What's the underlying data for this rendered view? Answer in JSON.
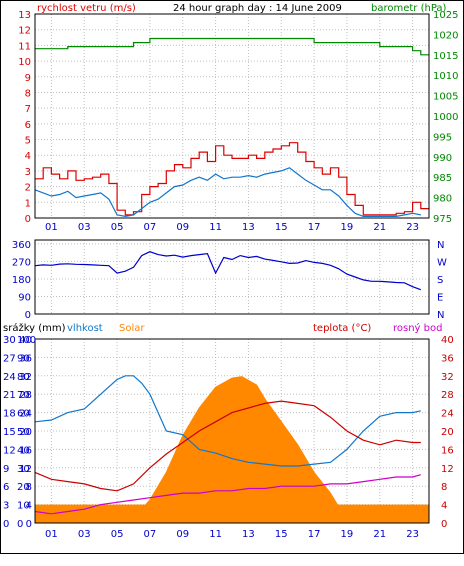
{
  "colors": {
    "wind": "#dd0000",
    "wind_avg": "#1177cc",
    "pressure": "#008800",
    "direction": "#0000cc",
    "humidity": "#1177cc",
    "solar": "#ff8800",
    "temperature": "#cc0000",
    "dewpoint": "#cc00cc",
    "rain": "#ff8800",
    "axis": "#000000",
    "grid": "#c0c0c0",
    "left_blue": "#0000cc",
    "right_red": "#cc0000"
  },
  "chart_data": [
    {
      "type": "line",
      "title": "24 hour graph day : 14 June 2009",
      "left_label": "rychlost vetru (m/s)",
      "right_label": "barometr (hPa)",
      "x_ticks": [
        "01",
        "03",
        "05",
        "07",
        "09",
        "11",
        "13",
        "15",
        "17",
        "19",
        "21",
        "23"
      ],
      "xlim": [
        0,
        24
      ],
      "ylim": [
        0,
        13
      ],
      "left_ticks": [
        0,
        1,
        2,
        3,
        4,
        5,
        6,
        7,
        8,
        9,
        10,
        11,
        12,
        13
      ],
      "ylim_right": [
        975,
        1025
      ],
      "right_ticks": [
        975,
        980,
        985,
        990,
        995,
        1000,
        1005,
        1010,
        1015,
        1020,
        1025
      ],
      "series": [
        {
          "key": "wind_gust",
          "x": [
            0,
            0.5,
            1,
            1.5,
            2,
            2.5,
            3,
            3.5,
            4,
            4.5,
            5,
            5.5,
            6,
            6.5,
            7,
            7.5,
            8,
            8.5,
            9,
            9.5,
            10,
            10.5,
            11,
            11.5,
            12,
            12.5,
            13,
            13.5,
            14,
            14.5,
            15,
            15.5,
            16,
            16.5,
            17,
            17.5,
            18,
            18.5,
            19,
            19.5,
            20,
            20.5,
            21,
            21.5,
            22,
            22.5,
            23,
            23.5
          ],
          "values": [
            2.5,
            3.2,
            2.8,
            2.5,
            3.0,
            2.4,
            2.5,
            2.6,
            2.8,
            2.2,
            0.5,
            0.2,
            0.4,
            1.5,
            2.0,
            2.2,
            3.0,
            3.4,
            3.2,
            3.8,
            4.2,
            3.6,
            4.6,
            4.0,
            3.8,
            3.8,
            4.0,
            3.8,
            4.2,
            4.4,
            4.6,
            4.8,
            4.2,
            3.6,
            3.2,
            2.8,
            3.2,
            2.6,
            1.5,
            0.8,
            0.2,
            0.2,
            0.2,
            0.2,
            0.3,
            0.4,
            1.0,
            0.6
          ]
        },
        {
          "key": "wind_avg",
          "x": [
            0,
            0.5,
            1,
            1.5,
            2,
            2.5,
            3,
            3.5,
            4,
            4.5,
            5,
            5.5,
            6,
            6.5,
            7,
            7.5,
            8,
            8.5,
            9,
            9.5,
            10,
            10.5,
            11,
            11.5,
            12,
            12.5,
            13,
            13.5,
            14,
            14.5,
            15,
            15.5,
            16,
            16.5,
            17,
            17.5,
            18,
            18.5,
            19,
            19.5,
            20,
            20.5,
            21,
            21.5,
            22,
            22.5,
            23,
            23.5
          ],
          "values": [
            1.8,
            1.6,
            1.4,
            1.5,
            1.7,
            1.3,
            1.4,
            1.5,
            1.6,
            1.2,
            0.2,
            0.1,
            0.2,
            0.6,
            1.0,
            1.2,
            1.6,
            2.0,
            2.1,
            2.4,
            2.6,
            2.4,
            2.8,
            2.5,
            2.6,
            2.6,
            2.7,
            2.6,
            2.8,
            2.9,
            3.0,
            3.2,
            2.8,
            2.4,
            2.1,
            1.8,
            1.8,
            1.4,
            0.8,
            0.3,
            0.1,
            0.1,
            0.1,
            0.1,
            0.1,
            0.2,
            0.3,
            0.2
          ]
        },
        {
          "key": "pressure",
          "axis": "right",
          "x": [
            0,
            1,
            2,
            3,
            4,
            5,
            6,
            7,
            8,
            9,
            10,
            11,
            12,
            13,
            14,
            15,
            16,
            17,
            18,
            19,
            20,
            21,
            22,
            23,
            23.5
          ],
          "values": [
            1016.5,
            1016.5,
            1017,
            1017,
            1017,
            1017,
            1018,
            1019,
            1019,
            1019,
            1019,
            1019,
            1019,
            1019,
            1019,
            1019,
            1019,
            1018,
            1018,
            1018,
            1018,
            1017,
            1017,
            1016,
            1015
          ]
        }
      ]
    },
    {
      "type": "line",
      "left_ticks": [
        0,
        90,
        180,
        270,
        360
      ],
      "ylim": [
        0,
        380
      ],
      "right_letters": [
        "N",
        "W",
        "S",
        "E",
        "N"
      ],
      "xlim": [
        0,
        24
      ],
      "series": [
        {
          "key": "wind_direction",
          "x": [
            0,
            0.5,
            1,
            1.5,
            2,
            2.5,
            3,
            3.5,
            4,
            4.5,
            5,
            5.5,
            6,
            6.5,
            7,
            7.5,
            8,
            8.5,
            9,
            9.5,
            10,
            10.5,
            11,
            11.5,
            12,
            12.5,
            13,
            13.5,
            14,
            14.5,
            15,
            15.5,
            16,
            16.5,
            17,
            17.5,
            18,
            18.5,
            19,
            19.5,
            20,
            20.5,
            21,
            21.5,
            22,
            22.5,
            23,
            23.5
          ],
          "values": [
            248,
            252,
            250,
            256,
            258,
            255,
            254,
            252,
            250,
            248,
            210,
            220,
            240,
            300,
            320,
            305,
            298,
            302,
            292,
            300,
            305,
            310,
            210,
            290,
            280,
            300,
            290,
            296,
            282,
            275,
            268,
            260,
            262,
            274,
            265,
            260,
            250,
            232,
            205,
            190,
            175,
            168,
            168,
            165,
            162,
            160,
            140,
            125
          ]
        }
      ]
    },
    {
      "type": "area",
      "headers": {
        "rain": "srážky (mm)",
        "humidity": "vlhkost",
        "solar": "Solar",
        "temperature": "teplota (°C)",
        "dewpoint": "rosný bod"
      },
      "x_ticks": [
        "01",
        "03",
        "05",
        "07",
        "09",
        "11",
        "13",
        "15",
        "17",
        "19",
        "21",
        "23"
      ],
      "xlim": [
        0,
        24
      ],
      "rain_ticks": [
        0,
        3,
        6,
        9,
        12,
        15,
        18,
        21,
        24,
        27,
        30
      ],
      "humidity_ticks": [
        0,
        10,
        20,
        30,
        40,
        50,
        60,
        70,
        80,
        90,
        100
      ],
      "temp_left_ticks": [
        0,
        4,
        8,
        12,
        16,
        20,
        24,
        28,
        32,
        36,
        40
      ],
      "temp_right_ticks": [
        0,
        4,
        8,
        12,
        16,
        20,
        24,
        28,
        32,
        36,
        40
      ],
      "ylim_temp": [
        0,
        40
      ],
      "ylim_humidity": [
        0,
        100
      ],
      "series": [
        {
          "key": "temperature",
          "axis": "temp",
          "x": [
            0,
            1,
            2,
            3,
            4,
            5,
            6,
            7,
            8,
            9,
            10,
            11,
            12,
            13,
            14,
            15,
            16,
            17,
            18,
            19,
            20,
            21,
            22,
            23,
            23.5
          ],
          "values": [
            11,
            9.5,
            9,
            8.5,
            7.5,
            7,
            8.5,
            12,
            15,
            17.5,
            20,
            22,
            24,
            25,
            26,
            26.5,
            26,
            25.5,
            23,
            20,
            18,
            17,
            18,
            17.5,
            17.5
          ]
        },
        {
          "key": "dewpoint",
          "axis": "temp",
          "x": [
            0,
            1,
            2,
            3,
            4,
            5,
            6,
            7,
            8,
            9,
            10,
            11,
            12,
            13,
            14,
            15,
            16,
            17,
            18,
            19,
            20,
            21,
            22,
            23,
            23.5
          ],
          "values": [
            2.5,
            2,
            2.5,
            3,
            4,
            4.5,
            5,
            5.5,
            6,
            6.5,
            6.5,
            7,
            7,
            7.5,
            7.5,
            8,
            8,
            8,
            8.5,
            8.5,
            9,
            9.5,
            10,
            10,
            10.5
          ]
        },
        {
          "key": "humidity",
          "axis": "humidity",
          "x": [
            0,
            1,
            2,
            3,
            4,
            4.5,
            5,
            5.5,
            6,
            6.5,
            7,
            8,
            9,
            10,
            11,
            12,
            13,
            14,
            15,
            16,
            17,
            18,
            19,
            20,
            21,
            22,
            23,
            23.5
          ],
          "values": [
            55,
            56,
            60,
            62,
            70,
            74,
            78,
            80,
            80,
            76,
            70,
            50,
            48,
            40,
            38,
            35,
            33,
            32,
            31,
            31,
            32,
            33,
            40,
            50,
            58,
            60,
            60,
            61
          ]
        },
        {
          "key": "solar",
          "axis": "temp",
          "x": [
            0,
            4,
            5,
            5.8,
            6.5,
            7,
            8,
            9,
            10,
            11,
            12,
            12.6,
            13.5,
            14,
            15,
            16,
            16.5,
            17,
            18,
            18.5,
            19,
            19.5,
            20,
            24
          ],
          "values": [
            0,
            0,
            0,
            1.2,
            3,
            5,
            11,
            19,
            25,
            29.5,
            31.5,
            31.8,
            30,
            27,
            22,
            17,
            14,
            11,
            6.5,
            3.5,
            1.8,
            0.6,
            0,
            0
          ]
        },
        {
          "key": "rain",
          "axis": "rain",
          "x": [
            0,
            24
          ],
          "values": [
            0.3,
            0.3
          ]
        }
      ]
    }
  ]
}
